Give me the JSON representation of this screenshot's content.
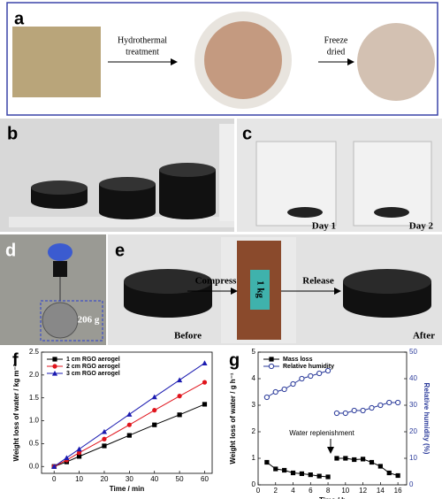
{
  "panels": {
    "a": {
      "label": "a",
      "step1": [
        "Hydrothermal",
        "treatment"
      ],
      "step2": [
        "Freeze",
        "dried"
      ]
    },
    "b": {
      "label": "b"
    },
    "c": {
      "label": "c",
      "day1": "Day 1",
      "day2": "Day 2"
    },
    "d": {
      "label": "d",
      "weight": "206 g"
    },
    "e": {
      "label": "e",
      "compress": "Compress",
      "release": "Release",
      "before": "Before",
      "after": "After",
      "load": "1 kg"
    }
  },
  "chart_data": [
    {
      "type": "line",
      "panel": "f",
      "xlabel": "Time / min",
      "ylabel": "Weight loss of water / kg m⁻²",
      "xlim": [
        -5,
        63
      ],
      "ylim": [
        -0.15,
        2.5
      ],
      "xticks": [
        0,
        10,
        20,
        30,
        40,
        50,
        60
      ],
      "yticks": [
        {
          "value": 0,
          "label": "0.0"
        },
        0.5,
        {
          "value": 1,
          "label": "1.0"
        },
        1.5,
        {
          "value": 2,
          "label": "2.0"
        },
        2.5
      ],
      "legend": "upper-left",
      "x": [
        0,
        5,
        10,
        20,
        30,
        40,
        50,
        60
      ],
      "series": [
        {
          "name": "1 cm RGO aerogel",
          "color": "#000000",
          "marker": "square",
          "values": [
            0,
            0.1,
            0.22,
            0.45,
            0.68,
            0.91,
            1.13,
            1.36
          ]
        },
        {
          "name": "2 cm RGO aerogel",
          "color": "#e0141c",
          "marker": "circle",
          "values": [
            0,
            0.14,
            0.3,
            0.6,
            0.91,
            1.23,
            1.54,
            1.84
          ]
        },
        {
          "name": "3 cm RGO aerogel",
          "color": "#1a1ab0",
          "marker": "triangle",
          "values": [
            0,
            0.19,
            0.38,
            0.76,
            1.14,
            1.52,
            1.89,
            2.26
          ]
        }
      ]
    },
    {
      "type": "line",
      "panel": "g",
      "xlabel": "Time / h",
      "ylabel": "Weight loss of water / g h⁻¹",
      "y2label": "Relative humidity (%)",
      "xlim": [
        0,
        17
      ],
      "ylim": [
        0,
        5
      ],
      "y2lim": [
        0,
        50
      ],
      "xticks": [
        0,
        2,
        4,
        6,
        8,
        10,
        12,
        14,
        16
      ],
      "yticks": [
        0,
        1,
        2,
        3,
        4,
        5
      ],
      "y2ticks": [
        0,
        10,
        20,
        30,
        40,
        50
      ],
      "legend": "upper-left",
      "annotation": "Water replenishment",
      "x": [
        1,
        2,
        3,
        4,
        5,
        6,
        7,
        8,
        8.5,
        9,
        10,
        11,
        12,
        13,
        14,
        15,
        16
      ],
      "series": [
        {
          "name": "Mass loss",
          "color": "#000000",
          "marker": "square",
          "values": [
            0.85,
            0.6,
            0.55,
            0.45,
            0.42,
            0.38,
            0.33,
            0.3,
            null,
            1.0,
            1.0,
            0.95,
            0.97,
            0.85,
            0.7,
            0.45,
            0.35
          ]
        },
        {
          "name": "Relative humidity",
          "color": "#2a3a9a",
          "marker": "circle-open",
          "axis": "y2",
          "values": [
            33,
            35,
            36,
            38,
            40,
            41,
            42,
            43,
            null,
            27,
            27,
            28,
            28,
            29,
            30,
            31,
            31
          ]
        }
      ]
    }
  ]
}
